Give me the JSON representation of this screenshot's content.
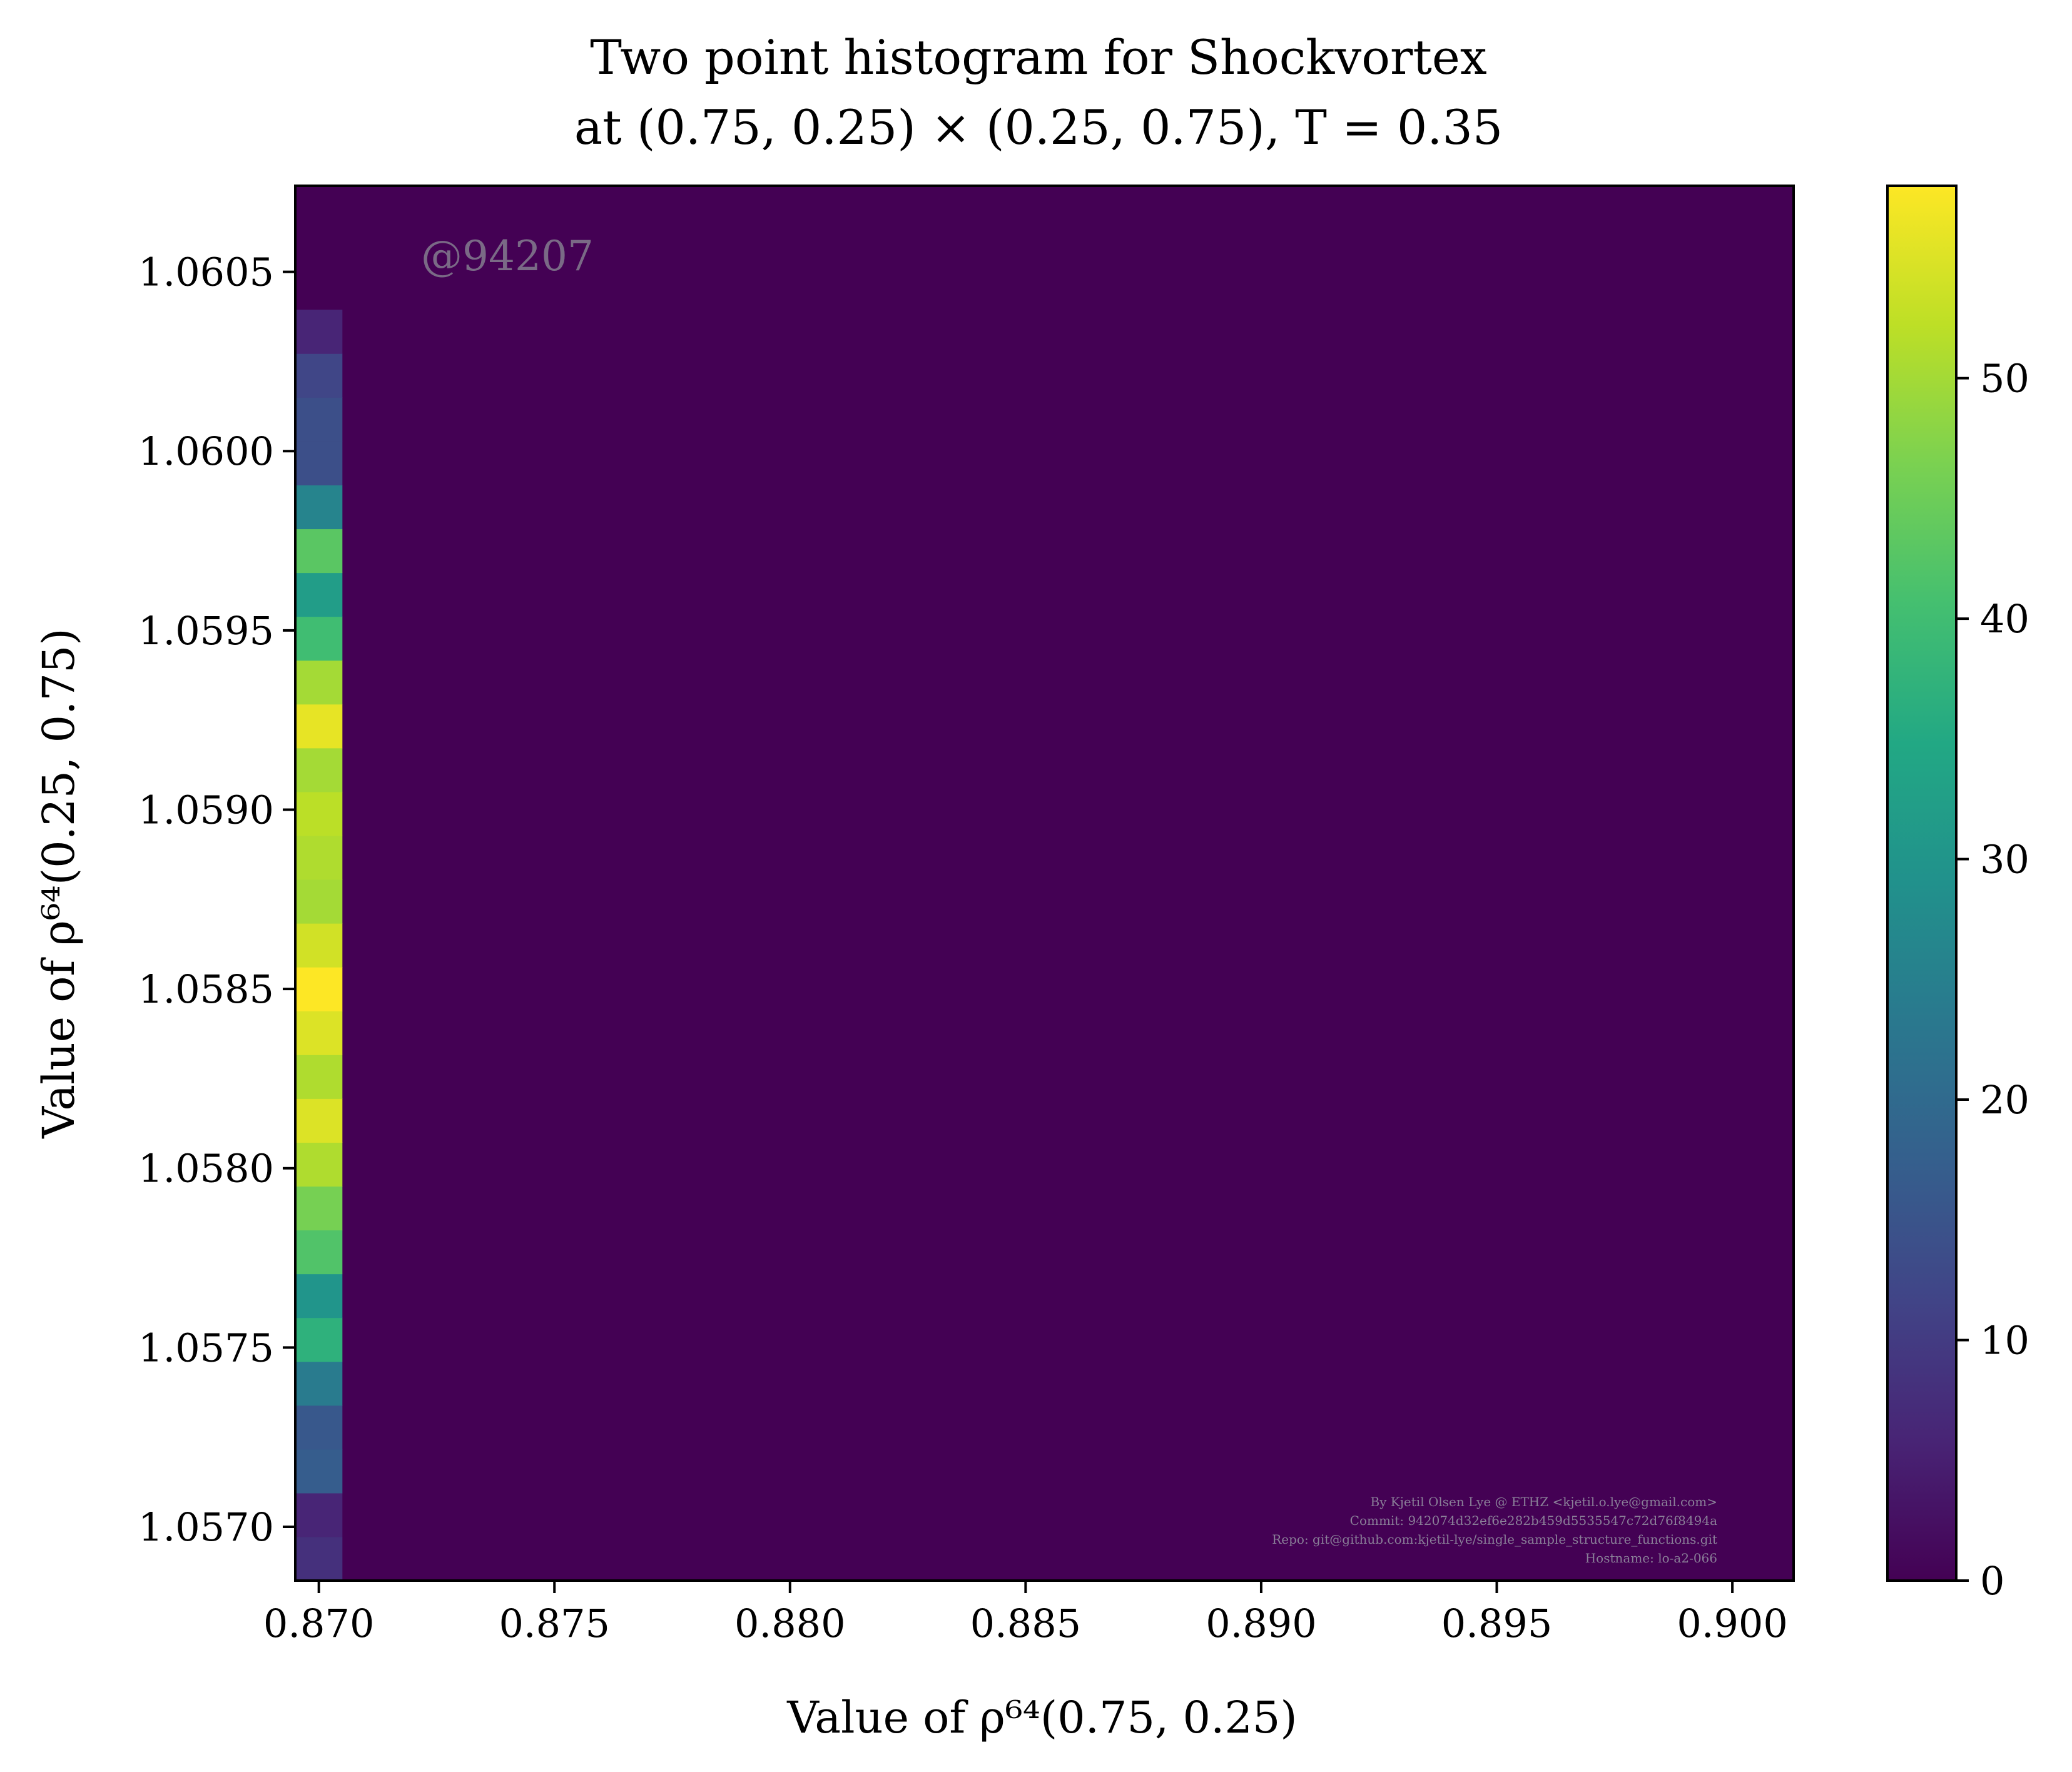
{
  "chart_data": {
    "type": "heatmap",
    "title_line1": "Two point histogram for Shockvortex",
    "title_line2": "at (0.75, 0.25) × (0.25, 0.75), T = 0.35",
    "xlabel": "Value of ρ⁶⁴(0.75, 0.25)",
    "ylabel": "Value of ρ⁶⁴(0.25, 0.75)",
    "xlim": [
      0.8695,
      0.9013
    ],
    "ylim": [
      1.05685,
      1.06074
    ],
    "x_ticks": [
      0.87,
      0.875,
      0.88,
      0.885,
      0.89,
      0.895,
      0.9
    ],
    "x_tick_labels": [
      "0.870",
      "0.875",
      "0.880",
      "0.885",
      "0.890",
      "0.895",
      "0.900"
    ],
    "y_ticks": [
      1.057,
      1.0575,
      1.058,
      1.0585,
      1.059,
      1.0595,
      1.06,
      1.0605
    ],
    "y_tick_labels": [
      "1.0570",
      "1.0575",
      "1.0580",
      "1.0585",
      "1.0590",
      "1.0595",
      "1.0600",
      "1.0605"
    ],
    "background_value": 0,
    "column_x_range": [
      0.8695,
      0.8705
    ],
    "bin_y_start": 1.05685,
    "bin_y_step": 0.00012222,
    "bin_counts": [
      8,
      6,
      17,
      16,
      24,
      37,
      30,
      42,
      46,
      51,
      55,
      51,
      55,
      58,
      54,
      50,
      51,
      52,
      50,
      56,
      50,
      40,
      32,
      43,
      26,
      14,
      14,
      12,
      6
    ],
    "colorbar": {
      "min": 0,
      "max": 58,
      "ticks": [
        0,
        10,
        20,
        30,
        40,
        50
      ],
      "tick_labels": [
        "0",
        "10",
        "20",
        "30",
        "40",
        "50"
      ],
      "colormap": "viridis"
    },
    "watermark": "@94207",
    "footer_lines": [
      "By Kjetil Olsen Lye @ ETHZ <kjetil.o.lye@gmail.com>",
      "Commit: 942074d32ef6e282b459d5535547c72d76f8494a",
      "Repo: git@github.com:kjetil-lye/single_sample_structure_functions.git",
      "Hostname: lo-a2-066"
    ]
  }
}
